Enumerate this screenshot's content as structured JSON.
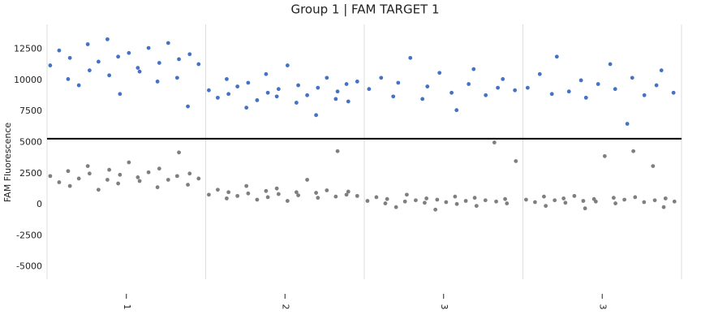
{
  "chart_data": {
    "type": "scatter",
    "title": "Group 1 | FAM TARGET 1",
    "y_label": "FAM Fluorescence",
    "categories": [
      "1",
      "2",
      "3",
      "3"
    ],
    "positive_color": "#4472c4",
    "negative_color": "#7f7f7f",
    "threshold": 5300,
    "threshold_color": "#000000",
    "ylim": [
      -6000,
      14500
    ],
    "yticks": [
      -5000,
      -2500,
      0,
      2500,
      5000,
      7500,
      10000,
      12500
    ],
    "grid": true,
    "wells": [
      {
        "positive": [
          11200,
          12400,
          10100,
          11800,
          9600,
          12900,
          10800,
          11500,
          13300,
          10400,
          11900,
          8900,
          12200,
          11000,
          10700,
          12600,
          9900,
          11400,
          13000,
          10200,
          11700,
          7900,
          12100,
          11300
        ],
        "negative": [
          2300,
          1800,
          2700,
          1500,
          2100,
          3100,
          2500,
          1200,
          2000,
          2800,
          1700,
          2400,
          3400,
          2200,
          1900,
          2600,
          1400,
          2900,
          2000,
          2300,
          4200,
          1600,
          2500,
          2100
        ]
      },
      {
        "positive": [
          9200,
          8600,
          10100,
          8900,
          9500,
          7800,
          9800,
          8400,
          10500,
          9000,
          8700,
          9300,
          11200,
          8200,
          9600,
          8800,
          7200,
          9400,
          10200,
          8500,
          9100,
          9700,
          8300,
          9900
        ],
        "negative": [
          800,
          1200,
          500,
          1000,
          700,
          1500,
          900,
          400,
          1100,
          600,
          1300,
          850,
          300,
          1000,
          750,
          2000,
          950,
          550,
          1150,
          650,
          4300,
          800,
          1050,
          700
        ]
      },
      {
        "positive": [
          9300,
          10200,
          8700,
          9800,
          11800,
          8500,
          9500,
          10600,
          9000,
          7600,
          9700,
          10900,
          8800,
          9400,
          10100,
          9200
        ],
        "negative": [
          300,
          600,
          100,
          450,
          -200,
          250,
          800,
          350,
          150,
          500,
          -400,
          400,
          200,
          650,
          50,
          300,
          550,
          -100,
          350,
          5000,
          250,
          450,
          100,
          3500
        ]
      },
      {
        "positive": [
          9400,
          10500,
          8900,
          11900,
          9100,
          10000,
          8600,
          9700,
          11300,
          9300,
          6500,
          10200,
          8800,
          9600,
          10800,
          9000
        ],
        "negative": [
          400,
          200,
          650,
          -100,
          350,
          500,
          150,
          700,
          300,
          -300,
          450,
          250,
          3900,
          550,
          100,
          400,
          4300,
          600,
          200,
          3100,
          350,
          -200,
          500,
          250
        ]
      }
    ]
  }
}
